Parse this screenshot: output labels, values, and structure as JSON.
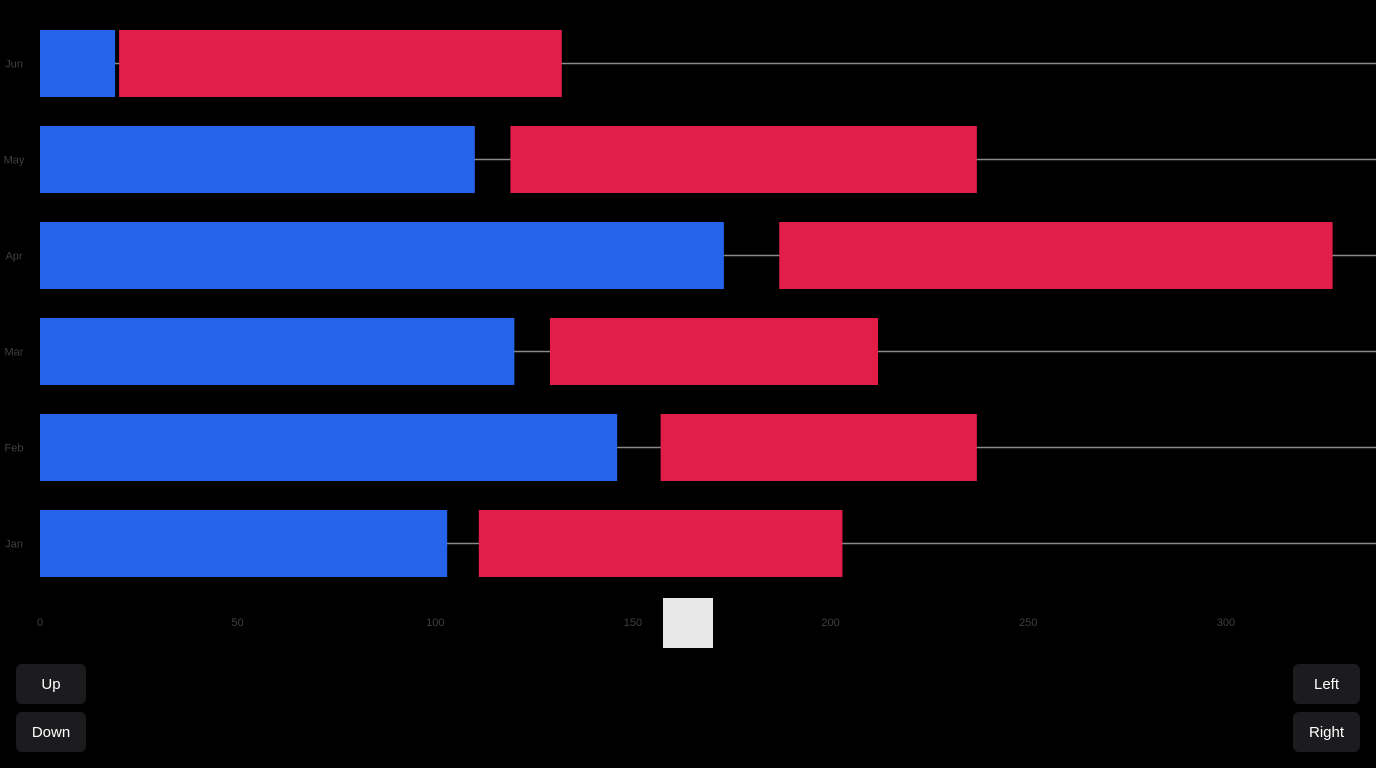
{
  "chart_data": {
    "type": "bar",
    "orientation": "horizontal",
    "categories": [
      "Jan",
      "Feb",
      "Mar",
      "Apr",
      "May",
      "Jun"
    ],
    "series": [
      {
        "color": "#2563eb",
        "values": [
          103,
          146,
          120,
          173,
          110,
          19
        ]
      },
      {
        "color": "#e11d48",
        "values": [
          92,
          80,
          83,
          140,
          118,
          112
        ]
      }
    ],
    "gap_values": [
      8,
      11,
      9,
      14,
      9,
      1
    ],
    "xlim": [
      0,
      340
    ],
    "xticks": [
      0,
      50,
      100,
      150,
      200,
      250,
      300
    ],
    "title": "",
    "xlabel": "",
    "ylabel": "",
    "legend": "none",
    "grid": false
  },
  "controls": {
    "up_label": "Up",
    "down_label": "Down",
    "left_label": "Left",
    "right_label": "Right"
  }
}
